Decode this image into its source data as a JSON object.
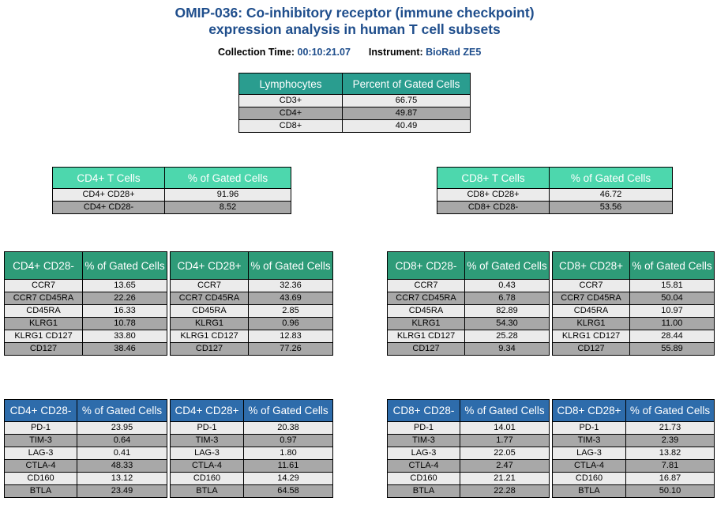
{
  "title": {
    "line1": "OMIP-036: Co-inhibitory receptor (immune checkpoint)",
    "line2": "expression analysis in human T cell subsets"
  },
  "meta": {
    "collection_label": "Collection Time:",
    "collection_value": "00:10:21.07",
    "instrument_label": "Instrument:",
    "instrument_value": "BioRad ZE5"
  },
  "lymphocytes": {
    "headers": [
      "Lymphocytes",
      "Percent of Gated Cells"
    ],
    "rows": [
      {
        "label": "CD3+",
        "value": "66.75"
      },
      {
        "label": "CD4+",
        "value": "49.87"
      },
      {
        "label": "CD8+",
        "value": "40.49"
      }
    ]
  },
  "cd4_t": {
    "headers": [
      "CD4+ T Cells",
      "% of Gated Cells"
    ],
    "rows": [
      {
        "label": "CD4+ CD28+",
        "value": "91.96"
      },
      {
        "label": "CD4+ CD28-",
        "value": "8.52"
      }
    ]
  },
  "cd8_t": {
    "headers": [
      "CD8+ T Cells",
      "% of Gated Cells"
    ],
    "rows": [
      {
        "label": "CD8+ CD28+",
        "value": "46.72"
      },
      {
        "label": "CD8+ CD28-",
        "value": "53.56"
      }
    ]
  },
  "mem_cd4_neg": {
    "headers": [
      "CD4+ CD28-",
      "% of Gated Cells"
    ],
    "rows": [
      {
        "label": "CCR7",
        "value": "13.65"
      },
      {
        "label": "CCR7 CD45RA",
        "value": "22.26"
      },
      {
        "label": "CD45RA",
        "value": "16.33"
      },
      {
        "label": "KLRG1",
        "value": "10.78"
      },
      {
        "label": "KLRG1 CD127",
        "value": "33.80"
      },
      {
        "label": "CD127",
        "value": "38.46"
      }
    ]
  },
  "mem_cd4_pos": {
    "headers": [
      "CD4+ CD28+",
      "% of Gated Cells"
    ],
    "rows": [
      {
        "label": "CCR7",
        "value": "32.36"
      },
      {
        "label": "CCR7 CD45RA",
        "value": "43.69"
      },
      {
        "label": "CD45RA",
        "value": "2.85"
      },
      {
        "label": "KLRG1",
        "value": "0.96"
      },
      {
        "label": "KLRG1 CD127",
        "value": "12.83"
      },
      {
        "label": "CD127",
        "value": "77.26"
      }
    ]
  },
  "mem_cd8_neg": {
    "headers": [
      "CD8+ CD28-",
      "% of Gated Cells"
    ],
    "rows": [
      {
        "label": "CCR7",
        "value": "0.43"
      },
      {
        "label": "CCR7 CD45RA",
        "value": "6.78"
      },
      {
        "label": "CD45RA",
        "value": "82.89"
      },
      {
        "label": "KLRG1",
        "value": "54.30"
      },
      {
        "label": "KLRG1 CD127",
        "value": "25.28"
      },
      {
        "label": "CD127",
        "value": "9.34"
      }
    ]
  },
  "mem_cd8_pos": {
    "headers": [
      "CD8+ CD28+",
      "% of Gated Cells"
    ],
    "rows": [
      {
        "label": "CCR7",
        "value": "15.81"
      },
      {
        "label": "CCR7 CD45RA",
        "value": "50.04"
      },
      {
        "label": "CD45RA",
        "value": "10.97"
      },
      {
        "label": "KLRG1",
        "value": "11.00"
      },
      {
        "label": "KLRG1 CD127",
        "value": "28.44"
      },
      {
        "label": "CD127",
        "value": "55.89"
      }
    ]
  },
  "chk_cd4_neg": {
    "headers": [
      "CD4+ CD28-",
      "% of Gated Cells"
    ],
    "rows": [
      {
        "label": "PD-1",
        "value": "23.95"
      },
      {
        "label": "TIM-3",
        "value": "0.64"
      },
      {
        "label": "LAG-3",
        "value": "0.41"
      },
      {
        "label": "CTLA-4",
        "value": "48.33"
      },
      {
        "label": "CD160",
        "value": "13.12"
      },
      {
        "label": "BTLA",
        "value": "23.49"
      }
    ]
  },
  "chk_cd4_pos": {
    "headers": [
      "CD4+ CD28+",
      "% of Gated Cells"
    ],
    "rows": [
      {
        "label": "PD-1",
        "value": "20.38"
      },
      {
        "label": "TIM-3",
        "value": "0.97"
      },
      {
        "label": "LAG-3",
        "value": "1.80"
      },
      {
        "label": "CTLA-4",
        "value": "11.61"
      },
      {
        "label": "CD160",
        "value": "14.29"
      },
      {
        "label": "BTLA",
        "value": "64.58"
      }
    ]
  },
  "chk_cd8_neg": {
    "headers": [
      "CD8+ CD28-",
      "% of Gated Cells"
    ],
    "rows": [
      {
        "label": "PD-1",
        "value": "14.01"
      },
      {
        "label": "TIM-3",
        "value": "1.77"
      },
      {
        "label": "LAG-3",
        "value": "22.05"
      },
      {
        "label": "CTLA-4",
        "value": "2.47"
      },
      {
        "label": "CD160",
        "value": "21.21"
      },
      {
        "label": "BTLA",
        "value": "22.28"
      }
    ]
  },
  "chk_cd8_pos": {
    "headers": [
      "CD8+ CD28+",
      "% of Gated Cells"
    ],
    "rows": [
      {
        "label": "PD-1",
        "value": "21.73"
      },
      {
        "label": "TIM-3",
        "value": "2.39"
      },
      {
        "label": "LAG-3",
        "value": "13.82"
      },
      {
        "label": "CTLA-4",
        "value": "7.81"
      },
      {
        "label": "CD160",
        "value": "16.87"
      },
      {
        "label": "BTLA",
        "value": "50.10"
      }
    ]
  }
}
